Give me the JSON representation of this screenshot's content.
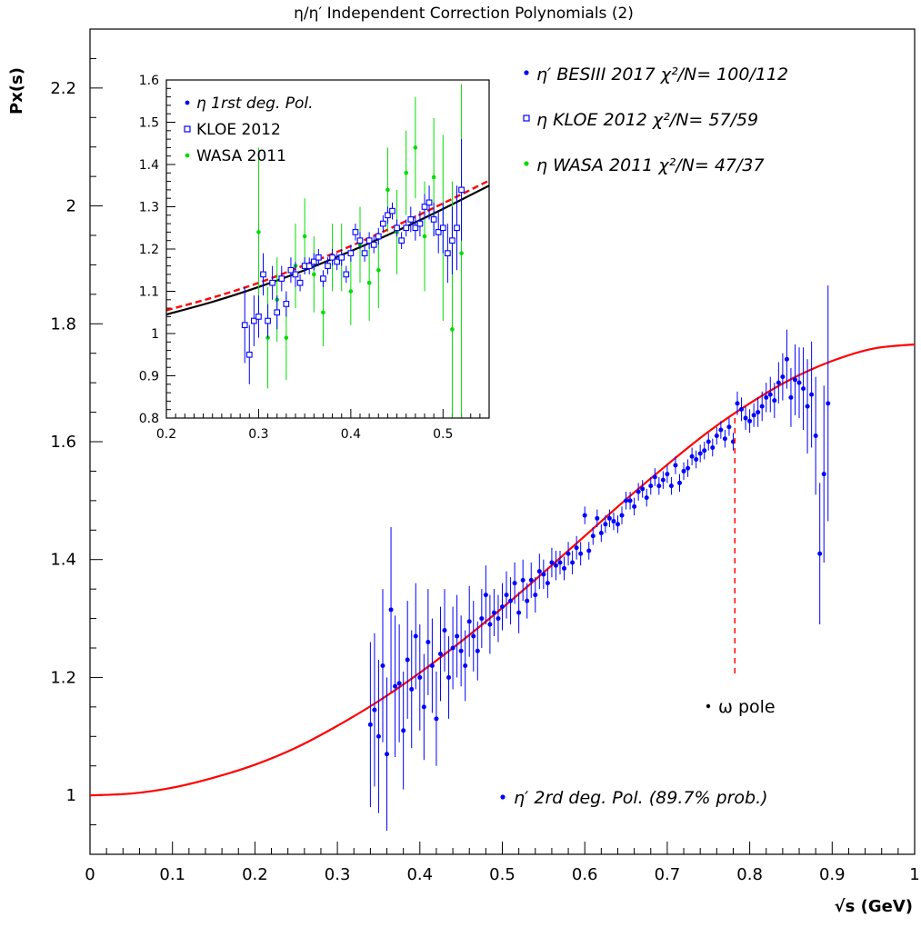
{
  "chart_data": [
    {
      "type": "scatter",
      "title": "η/η′ Independent Correction Polynomials (2)",
      "xlabel": "√s (GeV)",
      "ylabel": "Px(s)",
      "xlim": [
        0,
        1
      ],
      "ylim": [
        0.9,
        2.3
      ],
      "x_ticks": [
        "0",
        "0.1",
        "0.2",
        "0.3",
        "0.4",
        "0.5",
        "0.6",
        "0.7",
        "0.8",
        "0.9",
        "1"
      ],
      "y_ticks": [
        "1",
        "1.2",
        "1.4",
        "1.6",
        "1.8",
        "2",
        "2.2"
      ],
      "legend": [
        {
          "label": "η′ BESIII 2017 χ²/N= 100/112",
          "marker": "dot",
          "color": "#0000ff"
        },
        {
          "label": "η KLOE 2012 χ²/N= 57/59",
          "marker": "open-square",
          "color": "#0000ff"
        },
        {
          "label": "η WASA 2011 χ²/N= 47/37",
          "marker": "dot",
          "color": "#00dd00"
        }
      ],
      "legend_placement": "top-right",
      "annotations": {
        "omega_pole": "ω pole",
        "omega_pole_x": 0.782,
        "fit_label": "η′  2rd deg. Pol. (89.7% prob.)"
      },
      "curve": {
        "name": "η′ 2rd deg. Pol.",
        "color": "#ff0000",
        "x": [
          0,
          0.05,
          0.1,
          0.15,
          0.2,
          0.25,
          0.3,
          0.35,
          0.4,
          0.45,
          0.5,
          0.55,
          0.6,
          0.65,
          0.7,
          0.75,
          0.8,
          0.85,
          0.9,
          0.95,
          1.0
        ],
        "y": [
          1.0,
          1.003,
          1.013,
          1.03,
          1.052,
          1.081,
          1.118,
          1.16,
          1.208,
          1.261,
          1.318,
          1.378,
          1.44,
          1.502,
          1.561,
          1.617,
          1.665,
          1.706,
          1.737,
          1.758,
          1.765
        ]
      },
      "series": [
        {
          "name": "η′ BESIII 2017",
          "color": "#0000ff",
          "x": [
            0.34,
            0.345,
            0.35,
            0.355,
            0.36,
            0.365,
            0.37,
            0.375,
            0.38,
            0.385,
            0.39,
            0.395,
            0.4,
            0.405,
            0.41,
            0.415,
            0.42,
            0.425,
            0.43,
            0.435,
            0.44,
            0.445,
            0.45,
            0.455,
            0.46,
            0.465,
            0.47,
            0.475,
            0.48,
            0.485,
            0.49,
            0.495,
            0.5,
            0.505,
            0.51,
            0.515,
            0.52,
            0.525,
            0.53,
            0.535,
            0.54,
            0.545,
            0.55,
            0.555,
            0.56,
            0.565,
            0.57,
            0.575,
            0.58,
            0.585,
            0.59,
            0.595,
            0.6,
            0.605,
            0.61,
            0.615,
            0.62,
            0.625,
            0.63,
            0.635,
            0.64,
            0.645,
            0.65,
            0.655,
            0.66,
            0.665,
            0.67,
            0.675,
            0.68,
            0.685,
            0.69,
            0.695,
            0.7,
            0.705,
            0.71,
            0.715,
            0.72,
            0.725,
            0.73,
            0.735,
            0.74,
            0.745,
            0.75,
            0.755,
            0.76,
            0.765,
            0.77,
            0.775,
            0.78,
            0.785,
            0.79,
            0.795,
            0.8,
            0.805,
            0.81,
            0.815,
            0.82,
            0.825,
            0.83,
            0.835,
            0.84,
            0.845,
            0.85,
            0.855,
            0.86,
            0.865,
            0.87,
            0.875,
            0.88,
            0.885,
            0.89,
            0.895
          ],
          "y": [
            1.12,
            1.145,
            1.1,
            1.22,
            1.07,
            1.315,
            1.185,
            1.19,
            1.11,
            1.23,
            1.18,
            1.27,
            1.2,
            1.15,
            1.26,
            1.22,
            1.13,
            1.24,
            1.28,
            1.2,
            1.25,
            1.27,
            1.245,
            1.22,
            1.295,
            1.27,
            1.245,
            1.3,
            1.34,
            1.29,
            1.31,
            1.3,
            1.32,
            1.34,
            1.33,
            1.36,
            1.31,
            1.365,
            1.33,
            1.365,
            1.34,
            1.38,
            1.375,
            1.36,
            1.395,
            1.39,
            1.395,
            1.385,
            1.41,
            1.395,
            1.42,
            1.41,
            1.475,
            1.415,
            1.44,
            1.47,
            1.445,
            1.46,
            1.47,
            1.465,
            1.46,
            1.475,
            1.5,
            1.5,
            1.49,
            1.515,
            1.52,
            1.505,
            1.525,
            1.54,
            1.525,
            1.535,
            1.545,
            1.525,
            1.56,
            1.53,
            1.55,
            1.555,
            1.575,
            1.57,
            1.58,
            1.585,
            1.6,
            1.59,
            1.61,
            1.62,
            1.605,
            1.625,
            1.6,
            1.665,
            1.655,
            1.64,
            1.635,
            1.645,
            1.65,
            1.66,
            1.675,
            1.68,
            1.67,
            1.7,
            1.71,
            1.74,
            1.675,
            1.705,
            1.7,
            1.69,
            1.66,
            1.68,
            1.61,
            1.41,
            1.545,
            1.665
          ],
          "err": [
            0.14,
            0.13,
            0.13,
            0.13,
            0.13,
            0.14,
            0.12,
            0.1,
            0.1,
            0.1,
            0.1,
            0.09,
            0.09,
            0.09,
            0.09,
            0.08,
            0.08,
            0.08,
            0.07,
            0.07,
            0.07,
            0.07,
            0.06,
            0.06,
            0.06,
            0.06,
            0.05,
            0.05,
            0.05,
            0.05,
            0.04,
            0.04,
            0.04,
            0.04,
            0.04,
            0.035,
            0.035,
            0.035,
            0.03,
            0.03,
            0.03,
            0.03,
            0.025,
            0.025,
            0.025,
            0.025,
            0.02,
            0.02,
            0.02,
            0.02,
            0.02,
            0.02,
            0.015,
            0.015,
            0.015,
            0.015,
            0.015,
            0.015,
            0.015,
            0.015,
            0.015,
            0.015,
            0.015,
            0.015,
            0.015,
            0.015,
            0.015,
            0.015,
            0.015,
            0.015,
            0.015,
            0.015,
            0.015,
            0.015,
            0.015,
            0.015,
            0.015,
            0.015,
            0.015,
            0.015,
            0.015,
            0.015,
            0.015,
            0.015,
            0.015,
            0.015,
            0.015,
            0.015,
            0.015,
            0.02,
            0.02,
            0.02,
            0.02,
            0.02,
            0.025,
            0.025,
            0.025,
            0.03,
            0.03,
            0.035,
            0.04,
            0.05,
            0.05,
            0.06,
            0.06,
            0.07,
            0.08,
            0.09,
            0.1,
            0.12,
            0.15,
            0.2
          ]
        }
      ]
    },
    {
      "type": "scatter",
      "title": "",
      "xlim": [
        0.2,
        0.55
      ],
      "ylim": [
        0.8,
        1.6
      ],
      "x_ticks": [
        "0.2",
        "0.3",
        "0.4",
        "0.5"
      ],
      "y_ticks": [
        "0.8",
        "0.9",
        "1",
        "1.1",
        "1.2",
        "1.3",
        "1.4",
        "1.5",
        "1.6"
      ],
      "legend": [
        {
          "label": "η 1rst deg. Pol.",
          "marker": "dot",
          "color": "#0000ff"
        },
        {
          "label": "KLOE 2012",
          "marker": "open-square",
          "color": "#0000ff"
        },
        {
          "label": "WASA 2011",
          "marker": "dot",
          "color": "#00dd00"
        }
      ],
      "legend_placement": "top-left",
      "curves": [
        {
          "style": "solid",
          "color": "#000000",
          "x": [
            0.2,
            0.25,
            0.3,
            0.35,
            0.4,
            0.45,
            0.5,
            0.55
          ],
          "y": [
            1.045,
            1.075,
            1.11,
            1.15,
            1.195,
            1.243,
            1.295,
            1.35
          ]
        },
        {
          "style": "dashed",
          "color": "#ff0000",
          "x": [
            0.2,
            0.25,
            0.3,
            0.35,
            0.4,
            0.45,
            0.5,
            0.55
          ],
          "y": [
            1.055,
            1.085,
            1.12,
            1.162,
            1.207,
            1.256,
            1.308,
            1.362
          ]
        }
      ],
      "series": [
        {
          "name": "KLOE 2012",
          "color": "#0000ff",
          "x": [
            0.285,
            0.29,
            0.295,
            0.3,
            0.305,
            0.31,
            0.315,
            0.32,
            0.325,
            0.33,
            0.335,
            0.34,
            0.345,
            0.35,
            0.355,
            0.36,
            0.365,
            0.37,
            0.375,
            0.38,
            0.385,
            0.39,
            0.395,
            0.4,
            0.405,
            0.41,
            0.415,
            0.42,
            0.425,
            0.43,
            0.435,
            0.44,
            0.445,
            0.45,
            0.455,
            0.46,
            0.465,
            0.47,
            0.475,
            0.48,
            0.485,
            0.49,
            0.495,
            0.5,
            0.505,
            0.51,
            0.515,
            0.52
          ],
          "y": [
            1.02,
            0.95,
            1.03,
            1.04,
            1.14,
            1.03,
            1.12,
            1.05,
            1.13,
            1.07,
            1.15,
            1.14,
            1.12,
            1.16,
            1.16,
            1.17,
            1.18,
            1.13,
            1.16,
            1.18,
            1.17,
            1.18,
            1.14,
            1.19,
            1.24,
            1.22,
            1.19,
            1.22,
            1.21,
            1.23,
            1.26,
            1.28,
            1.29,
            1.25,
            1.22,
            1.25,
            1.27,
            1.25,
            1.26,
            1.3,
            1.31,
            1.27,
            1.24,
            1.25,
            1.19,
            1.22,
            1.25,
            1.34
          ],
          "err": [
            0.09,
            0.07,
            0.06,
            0.05,
            0.05,
            0.04,
            0.04,
            0.04,
            0.03,
            0.03,
            0.03,
            0.03,
            0.02,
            0.02,
            0.02,
            0.02,
            0.02,
            0.02,
            0.02,
            0.02,
            0.02,
            0.02,
            0.02,
            0.02,
            0.02,
            0.02,
            0.02,
            0.02,
            0.02,
            0.02,
            0.02,
            0.02,
            0.02,
            0.02,
            0.02,
            0.02,
            0.03,
            0.03,
            0.03,
            0.03,
            0.04,
            0.04,
            0.05,
            0.06,
            0.07,
            0.08,
            0.1,
            0.12
          ]
        },
        {
          "name": "WASA 2011",
          "color": "#00dd00",
          "x": [
            0.3,
            0.31,
            0.32,
            0.33,
            0.34,
            0.35,
            0.36,
            0.37,
            0.38,
            0.39,
            0.4,
            0.41,
            0.42,
            0.43,
            0.44,
            0.45,
            0.46,
            0.47,
            0.48,
            0.49,
            0.5,
            0.51,
            0.52
          ],
          "y": [
            1.24,
            0.99,
            1.08,
            0.99,
            1.16,
            1.23,
            1.14,
            1.05,
            1.18,
            1.18,
            1.1,
            1.21,
            1.12,
            1.15,
            1.34,
            1.24,
            1.38,
            1.44,
            1.23,
            1.37,
            1.25,
            1.01,
            1.19
          ],
          "err": [
            0.2,
            0.12,
            0.1,
            0.1,
            0.1,
            0.09,
            0.09,
            0.08,
            0.08,
            0.08,
            0.08,
            0.09,
            0.09,
            0.09,
            0.1,
            0.1,
            0.1,
            0.12,
            0.13,
            0.14,
            0.22,
            0.35,
            0.4
          ]
        }
      ]
    }
  ]
}
